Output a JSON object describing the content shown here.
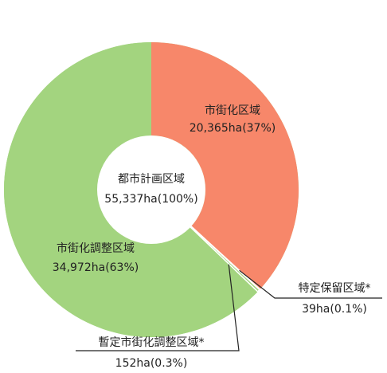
{
  "chart_data": {
    "type": "donut",
    "categories": [
      "市街化区域",
      "市街化調整区域",
      "特定保留区域*",
      "暫定市街化調整区域*"
    ],
    "values": [
      20365,
      34972,
      39,
      152
    ],
    "value_labels": [
      "20,365ha(37%)",
      "34,972ha(63%)",
      "39ha(0.1%)",
      "152ha(0.3%)"
    ],
    "colors": [
      "#f7876a",
      "#a3d47f",
      "#f7876a",
      "#a3d47f"
    ],
    "center": {
      "name": "都市計画区域",
      "value": 55337,
      "value_label": "55,337ha(100%)"
    }
  }
}
